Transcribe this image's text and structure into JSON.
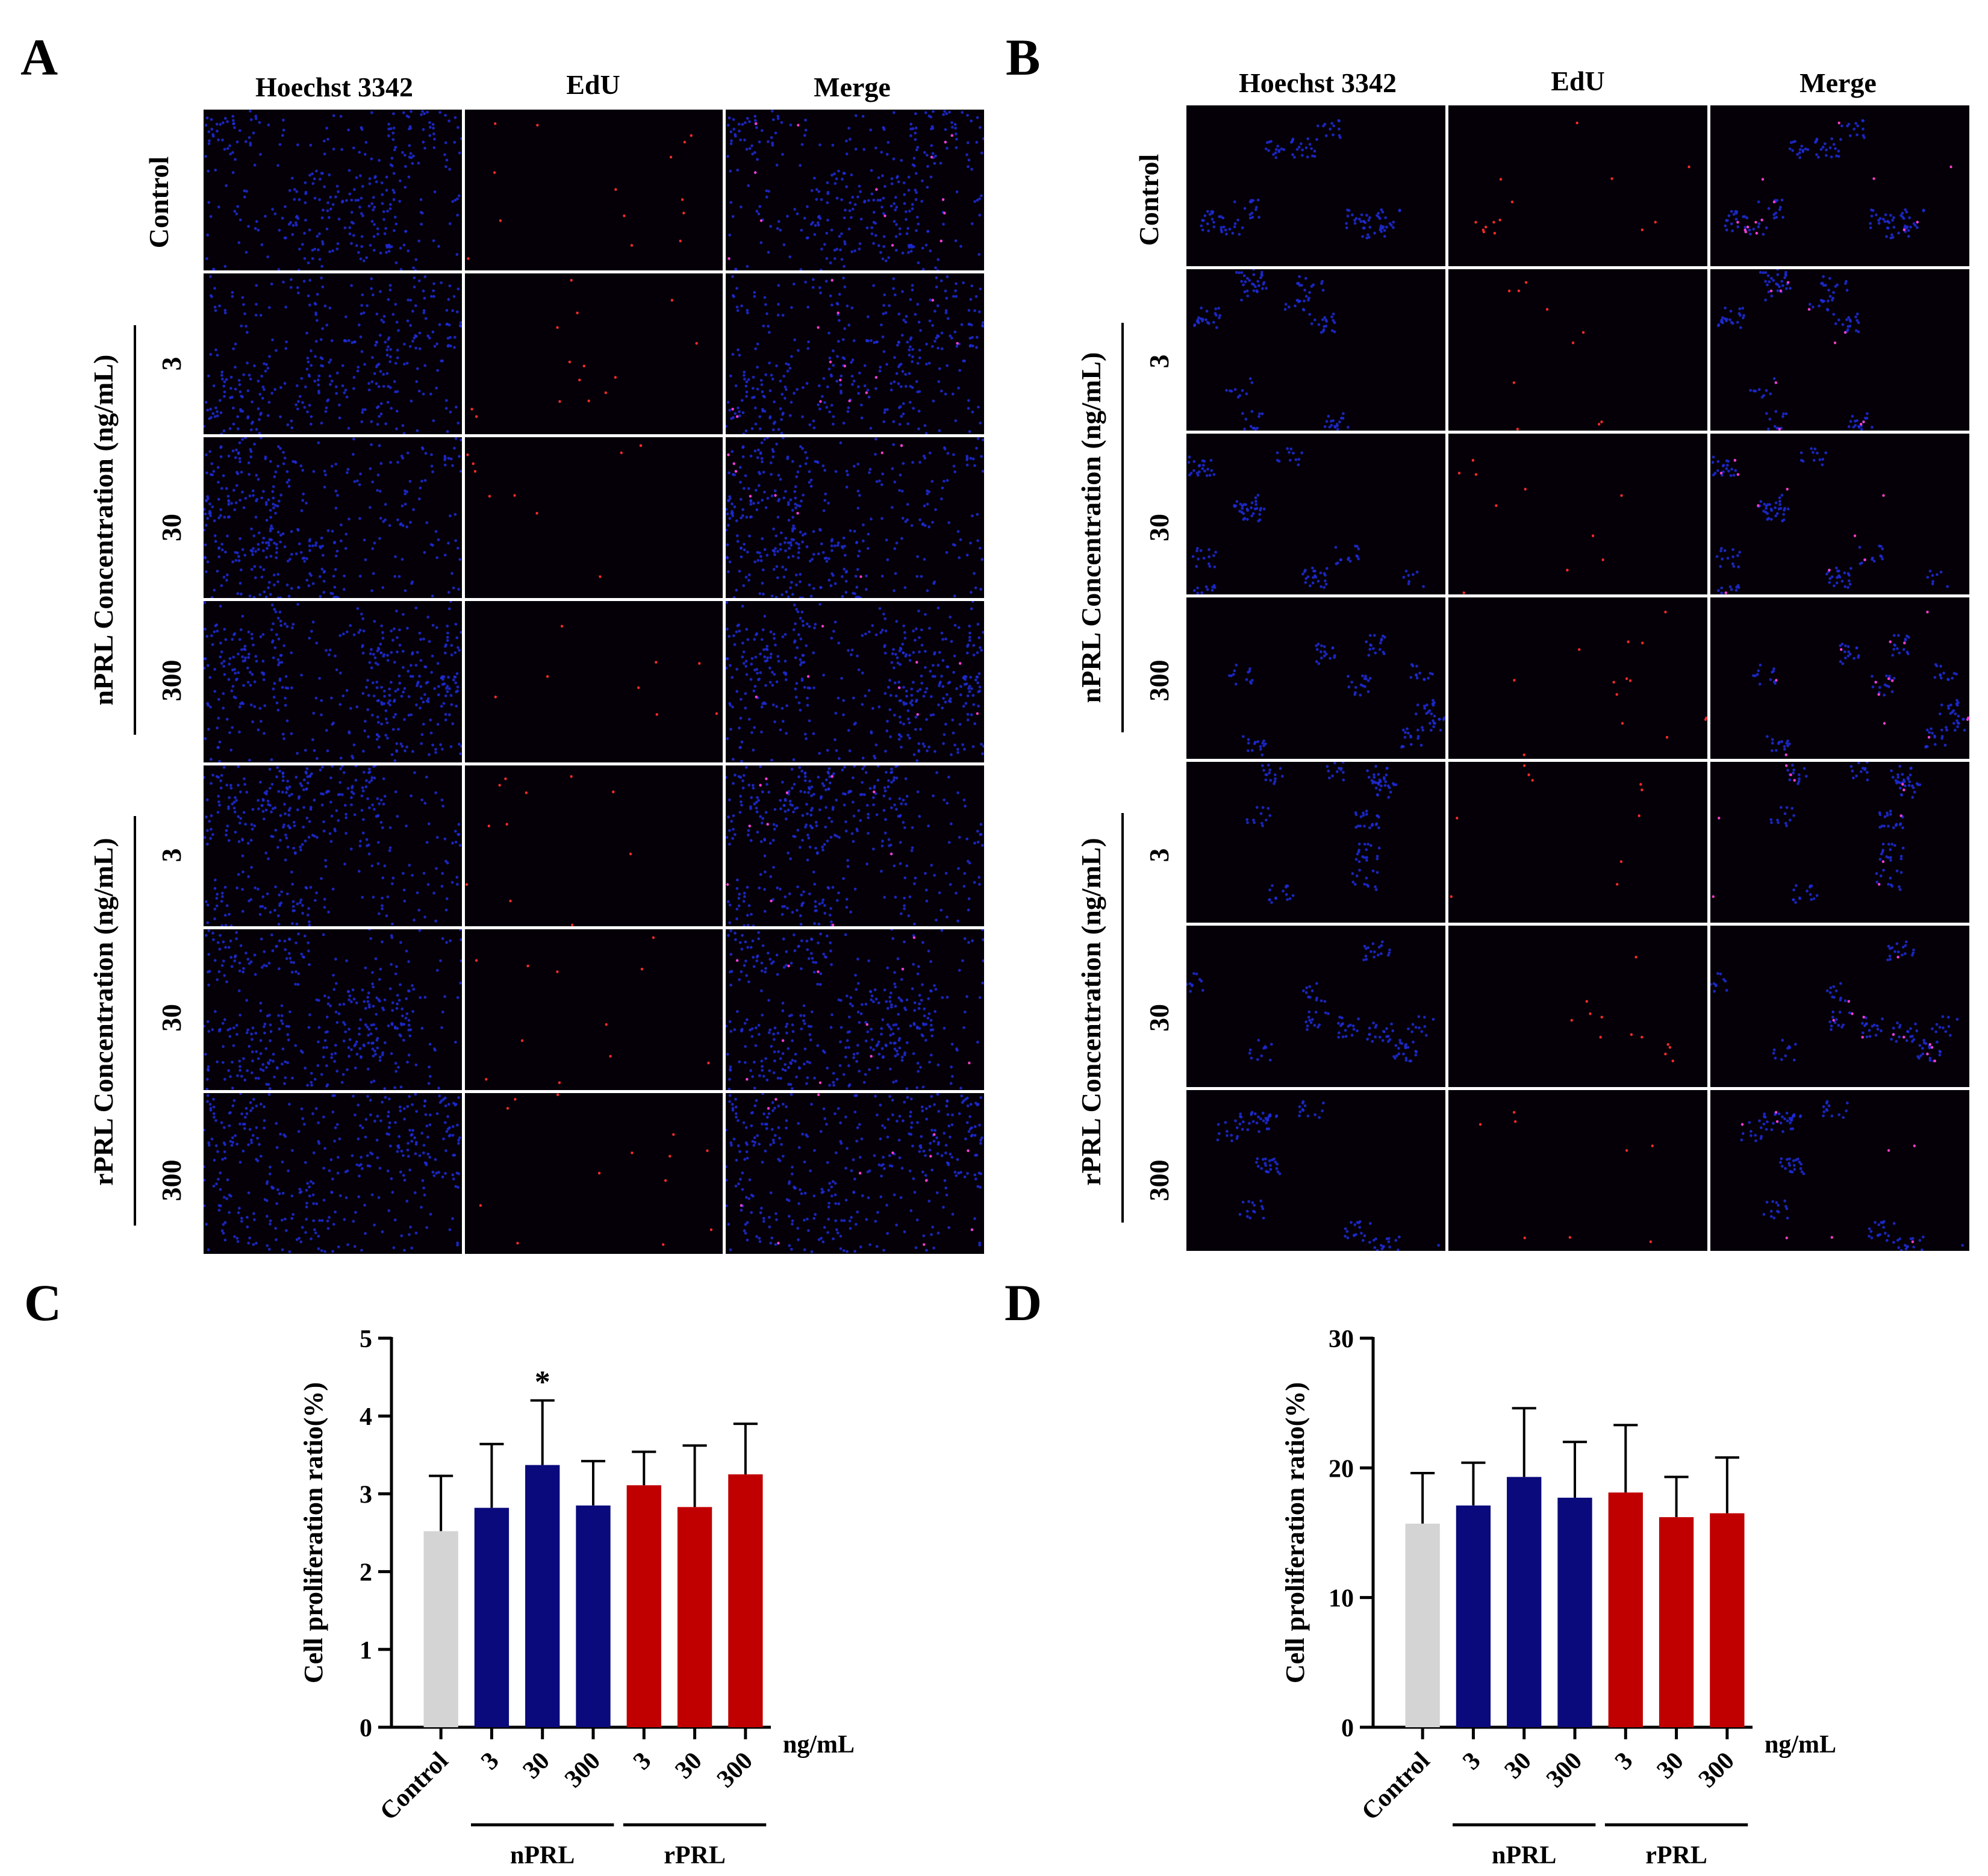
{
  "panel_letters": {
    "A": "A",
    "B": "B",
    "C": "C",
    "D": "D"
  },
  "micrograph_panels": {
    "column_headers": [
      "Hoechst 3342",
      "EdU",
      "Merge"
    ],
    "row_labels": [
      "Control",
      "3",
      "30",
      "300",
      "3",
      "30",
      "300"
    ],
    "group_labels": {
      "nprl": "nPRL Concentration (ng/mL)",
      "rprl": "rPRL Concentration (ng/mL)"
    },
    "colors": {
      "nuclei": "#1f2bd8",
      "edu": "#ff2a2a",
      "background": "#050008"
    }
  },
  "chart_data": [
    {
      "type": "bar",
      "panel": "C",
      "categories": [
        "Control",
        "3",
        "30",
        "300",
        "3",
        "30",
        "300"
      ],
      "groups": [
        {
          "label": "nPRL",
          "members": [
            1,
            2,
            3
          ]
        },
        {
          "label": "rPRL",
          "members": [
            4,
            5,
            6
          ]
        }
      ],
      "values": [
        2.52,
        2.82,
        3.37,
        2.85,
        3.11,
        2.83,
        3.25
      ],
      "error_upper": [
        3.23,
        3.64,
        4.2,
        3.42,
        3.54,
        3.62,
        3.9
      ],
      "bar_colors": [
        "#d4d4d4",
        "#0a0a7c",
        "#0a0a7c",
        "#0a0a7c",
        "#c00000",
        "#c00000",
        "#c00000"
      ],
      "significance": [
        {
          "index": 2,
          "mark": "*"
        }
      ],
      "ylabel": "Cell proliferation ratio(%)",
      "x_unit": "ng/mL",
      "ylim": [
        0,
        5
      ],
      "yticks": [
        0,
        1,
        2,
        3,
        4,
        5
      ],
      "grid": false
    },
    {
      "type": "bar",
      "panel": "D",
      "categories": [
        "Control",
        "3",
        "30",
        "300",
        "3",
        "30",
        "300"
      ],
      "groups": [
        {
          "label": "nPRL",
          "members": [
            1,
            2,
            3
          ]
        },
        {
          "label": "rPRL",
          "members": [
            4,
            5,
            6
          ]
        }
      ],
      "values": [
        15.7,
        17.1,
        19.3,
        17.7,
        18.1,
        16.2,
        16.5
      ],
      "error_upper": [
        19.6,
        20.4,
        24.6,
        22.0,
        23.3,
        19.3,
        20.8
      ],
      "bar_colors": [
        "#d4d4d4",
        "#0a0a7c",
        "#0a0a7c",
        "#0a0a7c",
        "#c00000",
        "#c00000",
        "#c00000"
      ],
      "significance": [],
      "ylabel": "Cell proliferation ratio(%)",
      "x_unit": "ng/mL",
      "ylim": [
        0,
        30
      ],
      "yticks": [
        0,
        10,
        20,
        30
      ],
      "grid": false
    }
  ]
}
